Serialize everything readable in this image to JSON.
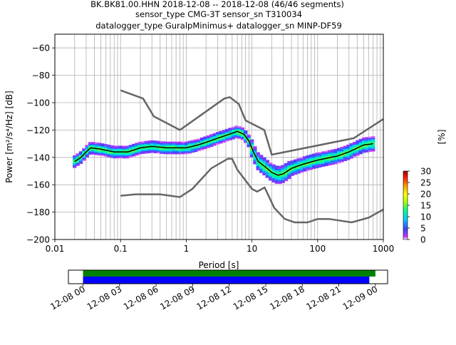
{
  "title_lines": [
    "BK.BK81.00.HHN   2018-12-08 -- 2018-12-08  (46/46 segments)",
    "sensor_type CMG-3T sensor_sn T310034",
    "datalogger_type GuralpMinimus+ datalogger_sn MINP-DF59"
  ],
  "chart_data": [
    {
      "type": "heatmap",
      "subtype": "probabilistic power spectral density",
      "xlabel": "Period [s]",
      "ylabel": "Power [m²/s⁴/Hz] [dB]",
      "x_scale": "log",
      "xlim": [
        0.01,
        1000
      ],
      "ylim": [
        -200,
        -50
      ],
      "x_ticks": [
        {
          "value": 0.01,
          "label": "0.01"
        },
        {
          "value": 0.1,
          "label": "0.1"
        },
        {
          "value": 1,
          "label": "1"
        },
        {
          "value": 10,
          "label": "10"
        },
        {
          "value": 100,
          "label": "100"
        },
        {
          "value": 1000,
          "label": "1000"
        }
      ],
      "y_ticks": [
        -60,
        -80,
        -100,
        -120,
        -140,
        -160,
        -180,
        -200
      ],
      "grid": true,
      "colorbar": {
        "label": "[%]",
        "ticks": [
          0,
          5,
          10,
          15,
          20,
          25,
          30
        ],
        "range": [
          0,
          30
        ],
        "colors": [
          "#ffffff",
          "#cc33ff",
          "#4040ff",
          "#00d0ff",
          "#00ff90",
          "#b0ff00",
          "#ffff00",
          "#ffa000",
          "#ff2000",
          "#990000"
        ]
      },
      "noise_models": [
        {
          "name": "high noise model",
          "points": [
            [
              0.1,
              -91
            ],
            [
              0.22,
              -97
            ],
            [
              0.32,
              -110
            ],
            [
              0.8,
              -120
            ],
            [
              3.8,
              -97
            ],
            [
              4.6,
              -96
            ],
            [
              6.3,
              -101
            ],
            [
              8,
              -113
            ],
            [
              15.4,
              -120
            ],
            [
              20,
              -138
            ],
            [
              354,
              -126
            ],
            [
              1000,
              -112
            ]
          ]
        },
        {
          "name": "low noise model",
          "points": [
            [
              0.1,
              -168
            ],
            [
              0.17,
              -167
            ],
            [
              0.4,
              -167
            ],
            [
              0.8,
              -169
            ],
            [
              1.24,
              -163
            ],
            [
              2.4,
              -148
            ],
            [
              4.3,
              -141
            ],
            [
              5,
              -141
            ],
            [
              6,
              -149
            ],
            [
              10,
              -163
            ],
            [
              12,
              -165
            ],
            [
              15.6,
              -162
            ],
            [
              21.9,
              -177
            ],
            [
              31.6,
              -185
            ],
            [
              45,
              -187.5
            ],
            [
              70,
              -187.5
            ],
            [
              100,
              -185
            ],
            [
              150,
              -185
            ],
            [
              330,
              -187.5
            ],
            [
              600,
              -184
            ],
            [
              1000,
              -178
            ]
          ]
        }
      ],
      "mean_curve": [
        [
          0.02,
          -143
        ],
        [
          0.025,
          -140
        ],
        [
          0.03,
          -136
        ],
        [
          0.035,
          -133
        ],
        [
          0.05,
          -134
        ],
        [
          0.08,
          -136
        ],
        [
          0.13,
          -136
        ],
        [
          0.2,
          -133
        ],
        [
          0.3,
          -132
        ],
        [
          0.5,
          -133
        ],
        [
          1,
          -133
        ],
        [
          1.5,
          -131
        ],
        [
          2,
          -129
        ],
        [
          3,
          -126
        ],
        [
          4,
          -124
        ],
        [
          6,
          -121
        ],
        [
          7.5,
          -123
        ],
        [
          9,
          -128
        ],
        [
          10.5,
          -136
        ],
        [
          12.5,
          -143
        ],
        [
          16,
          -147
        ],
        [
          20,
          -151
        ],
        [
          25,
          -153
        ],
        [
          30,
          -152
        ],
        [
          40,
          -148
        ],
        [
          60,
          -145
        ],
        [
          100,
          -142
        ],
        [
          200,
          -139
        ],
        [
          300,
          -136
        ],
        [
          500,
          -131
        ],
        [
          700,
          -130
        ]
      ]
    },
    {
      "type": "bar",
      "subtype": "data coverage timeline",
      "x_ticks": [
        "12-08 00",
        "12-08 03",
        "12-08 06",
        "12-08 09",
        "12-08 12",
        "12-08 15",
        "12-08 18",
        "12-08 21",
        "12-09 00"
      ],
      "x_hours": [
        0,
        3,
        6,
        9,
        12,
        15,
        18,
        21,
        24
      ],
      "xlim_hours": [
        -1.2,
        25
      ],
      "series": [
        {
          "color": "#008000",
          "start_hours": 0,
          "end_hours": 24.0
        },
        {
          "color": "#0000ff",
          "start_hours": 0,
          "end_hours": 23.5
        }
      ]
    }
  ]
}
